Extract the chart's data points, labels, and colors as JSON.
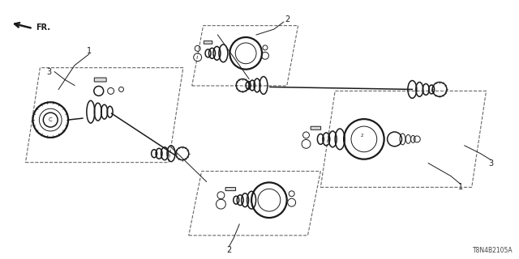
{
  "bg_color": "#ffffff",
  "line_color": "#1a1a1a",
  "diagram_code": "T8N4B2105A",
  "fig_width": 6.4,
  "fig_height": 3.2,
  "dpi": 100,
  "lw_thin": 0.7,
  "lw_med": 1.1,
  "lw_thick": 1.6,
  "font_size_label": 7,
  "font_size_code": 5.5
}
